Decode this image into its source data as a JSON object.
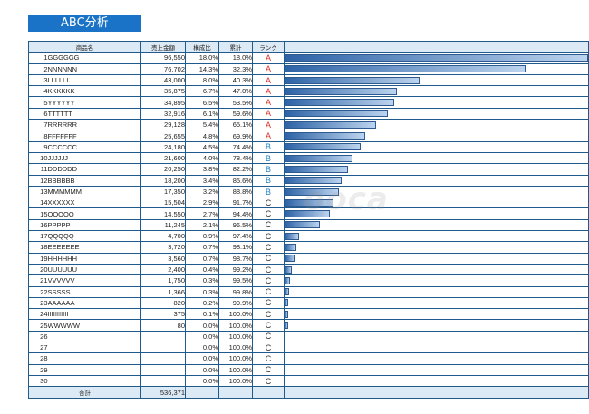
{
  "title": "ABC分析",
  "watermark": "ooca",
  "headers": {
    "name": "商品名",
    "sales": "売上金額",
    "ratio": "構成比",
    "cumulative": "累計",
    "rank": "ランク"
  },
  "rows": [
    {
      "no": "1",
      "name": "GGGGGG",
      "sales": "96,550",
      "ratio": "18.0%",
      "cumulative": "18.0%",
      "rank": "A"
    },
    {
      "no": "2",
      "name": "NNNNNN",
      "sales": "76,702",
      "ratio": "14.3%",
      "cumulative": "32.3%",
      "rank": "A"
    },
    {
      "no": "3",
      "name": "LLLLLL",
      "sales": "43,000",
      "ratio": "8.0%",
      "cumulative": "40.3%",
      "rank": "A"
    },
    {
      "no": "4",
      "name": "KKKKKK",
      "sales": "35,875",
      "ratio": "6.7%",
      "cumulative": "47.0%",
      "rank": "A"
    },
    {
      "no": "5",
      "name": "YYYYYY",
      "sales": "34,895",
      "ratio": "6.5%",
      "cumulative": "53.5%",
      "rank": "A"
    },
    {
      "no": "6",
      "name": "TTTTTT",
      "sales": "32,916",
      "ratio": "6.1%",
      "cumulative": "59.6%",
      "rank": "A"
    },
    {
      "no": "7",
      "name": "RRRRRR",
      "sales": "29,128",
      "ratio": "5.4%",
      "cumulative": "65.1%",
      "rank": "A"
    },
    {
      "no": "8",
      "name": "FFFFFFF",
      "sales": "25,655",
      "ratio": "4.8%",
      "cumulative": "69.9%",
      "rank": "A"
    },
    {
      "no": "9",
      "name": "CCCCCC",
      "sales": "24,180",
      "ratio": "4.5%",
      "cumulative": "74.4%",
      "rank": "B"
    },
    {
      "no": "10",
      "name": "JJJJJJ",
      "sales": "21,600",
      "ratio": "4.0%",
      "cumulative": "78.4%",
      "rank": "B"
    },
    {
      "no": "11",
      "name": "DDDDDD",
      "sales": "20,250",
      "ratio": "3.8%",
      "cumulative": "82.2%",
      "rank": "B"
    },
    {
      "no": "12",
      "name": "BBBBBB",
      "sales": "18,200",
      "ratio": "3.4%",
      "cumulative": "85.6%",
      "rank": "B"
    },
    {
      "no": "13",
      "name": "MMMMMM",
      "sales": "17,350",
      "ratio": "3.2%",
      "cumulative": "88.8%",
      "rank": "B"
    },
    {
      "no": "14",
      "name": "XXXXXX",
      "sales": "15,504",
      "ratio": "2.9%",
      "cumulative": "91.7%",
      "rank": "C"
    },
    {
      "no": "15",
      "name": "OOOOO",
      "sales": "14,550",
      "ratio": "2.7%",
      "cumulative": "94.4%",
      "rank": "C"
    },
    {
      "no": "16",
      "name": "PPPPP",
      "sales": "11,245",
      "ratio": "2.1%",
      "cumulative": "96.5%",
      "rank": "C"
    },
    {
      "no": "17",
      "name": "QQQQQ",
      "sales": "4,700",
      "ratio": "0.9%",
      "cumulative": "97.4%",
      "rank": "C"
    },
    {
      "no": "18",
      "name": "EEEEEEE",
      "sales": "3,720",
      "ratio": "0.7%",
      "cumulative": "98.1%",
      "rank": "C"
    },
    {
      "no": "19",
      "name": "HHHHHH",
      "sales": "3,560",
      "ratio": "0.7%",
      "cumulative": "98.7%",
      "rank": "C"
    },
    {
      "no": "20",
      "name": "UUUUUU",
      "sales": "2,400",
      "ratio": "0.4%",
      "cumulative": "99.2%",
      "rank": "C"
    },
    {
      "no": "21",
      "name": "VVVVVV",
      "sales": "1,750",
      "ratio": "0.3%",
      "cumulative": "99.5%",
      "rank": "C"
    },
    {
      "no": "22",
      "name": "SSSSS",
      "sales": "1,366",
      "ratio": "0.3%",
      "cumulative": "99.8%",
      "rank": "C"
    },
    {
      "no": "23",
      "name": "AAAAAA",
      "sales": "820",
      "ratio": "0.2%",
      "cumulative": "99.9%",
      "rank": "C"
    },
    {
      "no": "24",
      "name": "IIIIIIIIIII",
      "sales": "375",
      "ratio": "0.1%",
      "cumulative": "100.0%",
      "rank": "C"
    },
    {
      "no": "25",
      "name": "WWWWW",
      "sales": "80",
      "ratio": "0.0%",
      "cumulative": "100.0%",
      "rank": "C"
    },
    {
      "no": "26",
      "name": "",
      "sales": "",
      "ratio": "0.0%",
      "cumulative": "100.0%",
      "rank": "C"
    },
    {
      "no": "27",
      "name": "",
      "sales": "",
      "ratio": "0.0%",
      "cumulative": "100.0%",
      "rank": "C"
    },
    {
      "no": "28",
      "name": "",
      "sales": "",
      "ratio": "0.0%",
      "cumulative": "100.0%",
      "rank": "C"
    },
    {
      "no": "29",
      "name": "",
      "sales": "",
      "ratio": "0.0%",
      "cumulative": "100.0%",
      "rank": "C"
    },
    {
      "no": "30",
      "name": "",
      "sales": "",
      "ratio": "0.0%",
      "cumulative": "100.0%",
      "rank": "C"
    }
  ],
  "total": {
    "label": "合計",
    "sales": "536,371"
  },
  "colors": {
    "title_bg": "#1a73c6",
    "header_bg": "#dceaf6",
    "border": "#1f5a8c",
    "rank_A": "#e0302a",
    "rank_B": "#1f7fc0",
    "rank_C": "#333333",
    "bar": "#2e63a6"
  }
}
